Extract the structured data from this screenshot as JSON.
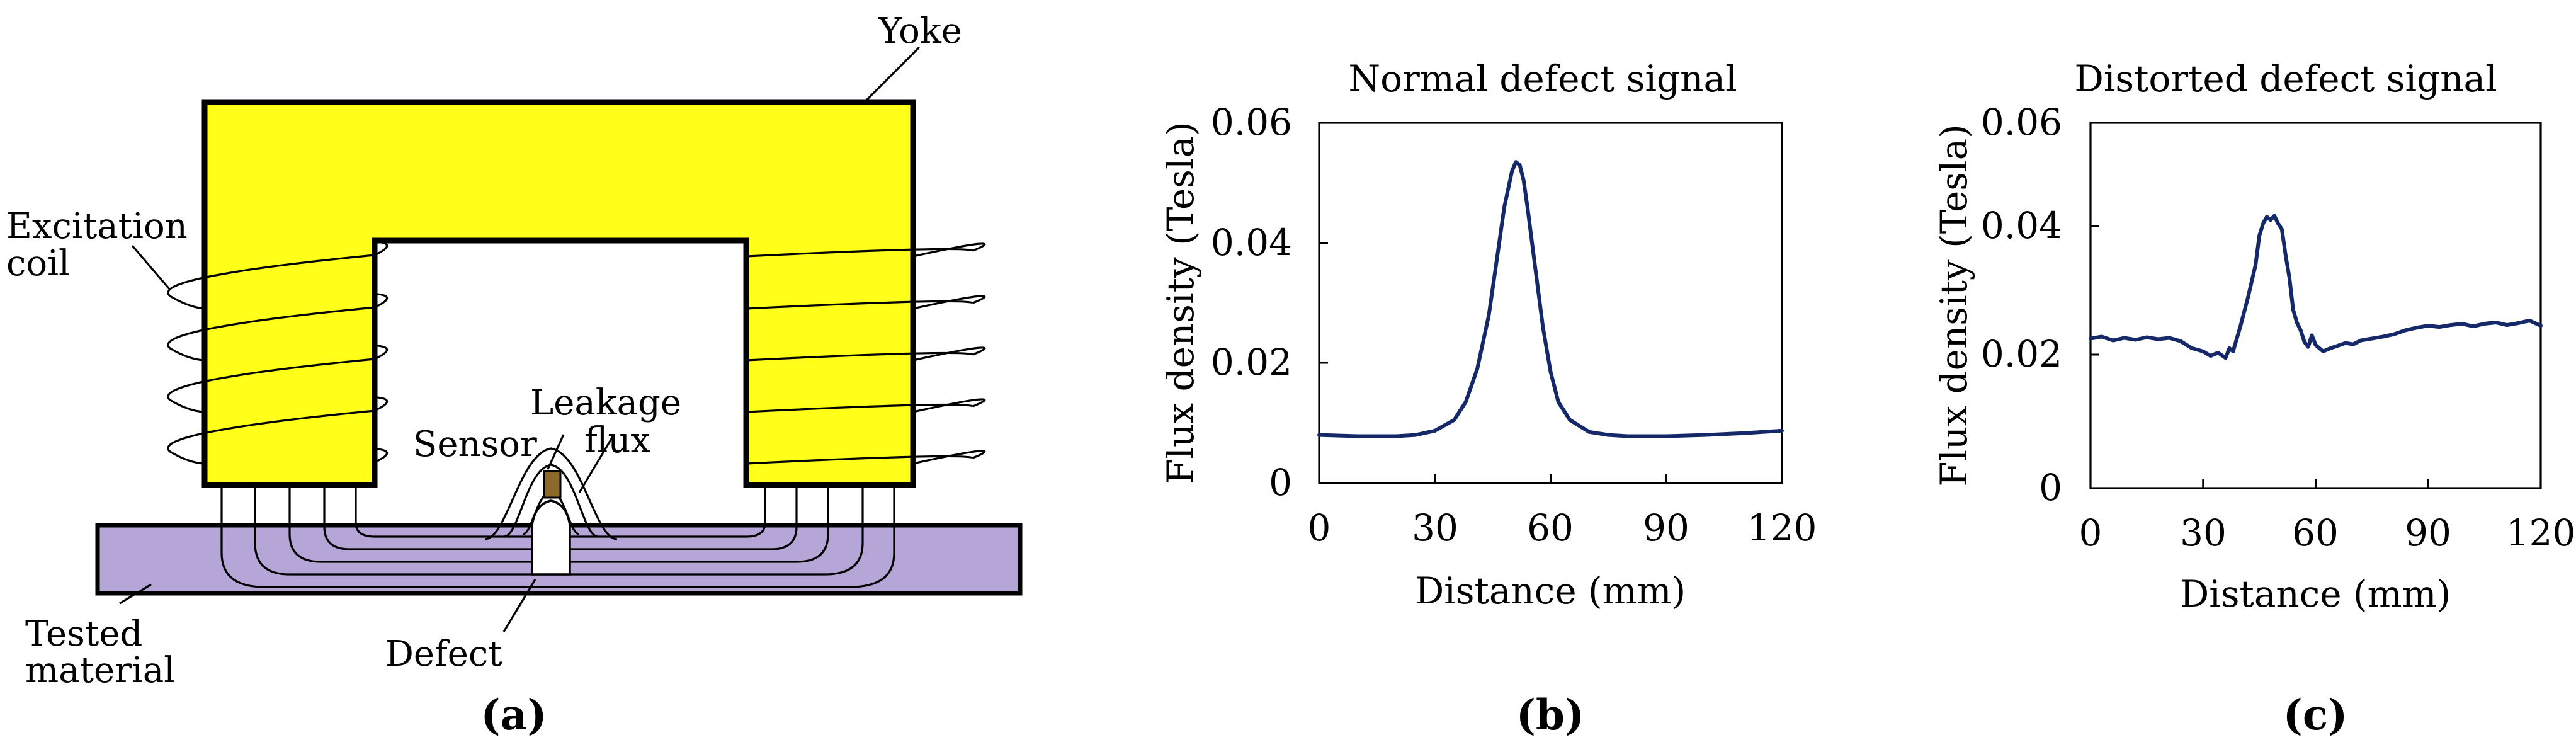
{
  "panel_a": {
    "label": "(a)",
    "labels": {
      "yoke": "Yoke",
      "excitation_line1": "Excitation",
      "excitation_line2": "coil",
      "sensor": "Sensor",
      "leakage_line1": "Leakage",
      "leakage_line2": "flux",
      "tested_line1": "Tested",
      "tested_line2": "material",
      "defect": "Defect"
    },
    "colors": {
      "yoke": "#ffff1a",
      "material": "#b6a6d8",
      "sensor": "#8b6a2b"
    }
  },
  "chart_data": [
    {
      "panel_label": "(b)",
      "type": "line",
      "title": "Normal defect signal",
      "xlabel": "Distance (mm)",
      "ylabel": "Flux density (Tesla)",
      "xlim": [
        0,
        120
      ],
      "ylim": [
        0,
        0.06
      ],
      "xticks": [
        "0",
        "30",
        "60",
        "90",
        "120"
      ],
      "yticks": [
        "0",
        "0.02",
        "0.04",
        "0.06"
      ],
      "color": "#15296a",
      "series": [
        {
          "name": "Normal defect signal",
          "x": [
            0,
            10,
            20,
            25,
            30,
            35,
            38,
            41,
            44,
            46,
            48,
            50,
            51,
            52,
            53,
            54,
            56,
            58,
            60,
            62,
            65,
            70,
            75,
            80,
            90,
            100,
            110,
            120
          ],
          "y": [
            0.008,
            0.0078,
            0.0078,
            0.008,
            0.0087,
            0.0105,
            0.0135,
            0.019,
            0.028,
            0.037,
            0.046,
            0.052,
            0.0535,
            0.053,
            0.0505,
            0.046,
            0.036,
            0.026,
            0.0185,
            0.0135,
            0.0105,
            0.0085,
            0.008,
            0.0078,
            0.0078,
            0.008,
            0.0083,
            0.0087
          ]
        }
      ]
    },
    {
      "panel_label": "(c)",
      "type": "line",
      "title": "Distorted defect signal",
      "xlabel": "Distance (mm)",
      "ylabel": "Flux density (Tesla)",
      "xlim": [
        0,
        120
      ],
      "ylim": [
        0,
        0.06
      ],
      "xticks": [
        "0",
        "30",
        "60",
        "90",
        "120"
      ],
      "yticks": [
        "0",
        "0.02",
        "0.04",
        "0.06"
      ],
      "color": "#15296a",
      "series": [
        {
          "name": "Distorted defect signal",
          "x": [
            0,
            3,
            6,
            9,
            12,
            15,
            18,
            21,
            24,
            27,
            30,
            32,
            34,
            36,
            37,
            38,
            40,
            42,
            44,
            45,
            46,
            47,
            48,
            49,
            50,
            51,
            52,
            53,
            54,
            55,
            56,
            57,
            58,
            59,
            60,
            62,
            64,
            66,
            68,
            70,
            72,
            75,
            78,
            81,
            84,
            87,
            90,
            93,
            96,
            99,
            102,
            105,
            108,
            111,
            114,
            117,
            120
          ],
          "y": [
            0.0225,
            0.0228,
            0.0222,
            0.0226,
            0.0223,
            0.0227,
            0.0224,
            0.0226,
            0.0221,
            0.021,
            0.0205,
            0.0198,
            0.0203,
            0.0195,
            0.021,
            0.0205,
            0.0245,
            0.029,
            0.034,
            0.0385,
            0.0405,
            0.0418,
            0.0412,
            0.042,
            0.0405,
            0.0395,
            0.0355,
            0.032,
            0.027,
            0.025,
            0.0238,
            0.022,
            0.0212,
            0.023,
            0.0215,
            0.0205,
            0.021,
            0.0214,
            0.0218,
            0.0216,
            0.0222,
            0.0225,
            0.0228,
            0.0232,
            0.0238,
            0.0242,
            0.0245,
            0.0243,
            0.0246,
            0.0248,
            0.0244,
            0.0248,
            0.025,
            0.0246,
            0.0249,
            0.0253,
            0.0245
          ]
        }
      ]
    }
  ]
}
